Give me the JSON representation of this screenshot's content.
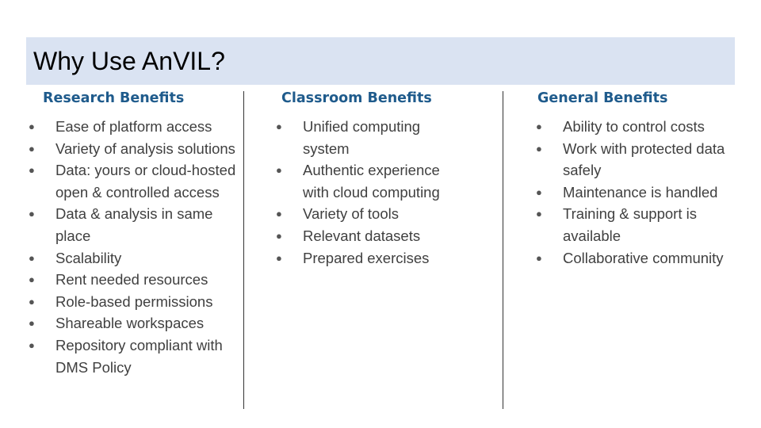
{
  "title": "Why Use AnVIL?",
  "columns": [
    {
      "heading": "Research Benefits",
      "items": [
        "Ease of platform access",
        "Variety of analysis solutions",
        "Data: yours or cloud-hosted open & controlled access",
        "Data & analysis in same place",
        "Scalability",
        "Rent needed resources",
        "Role-based permissions",
        "Shareable workspaces",
        "Repository compliant with DMS Policy"
      ]
    },
    {
      "heading": "Classroom Benefits",
      "items": [
        "Unified computing system",
        "Authentic experience with cloud computing",
        "Variety of tools",
        "Relevant datasets",
        "Prepared exercises"
      ]
    },
    {
      "heading": "General Benefits",
      "items": [
        "Ability to control costs",
        "Work with protected data safely",
        "Maintenance is handled",
        "Training & support is available",
        "Collaborative community"
      ]
    }
  ],
  "colors": {
    "title_bar_background": "#dae3f2",
    "heading_color": "#1f5b8c",
    "body_text_color": "#404040"
  }
}
